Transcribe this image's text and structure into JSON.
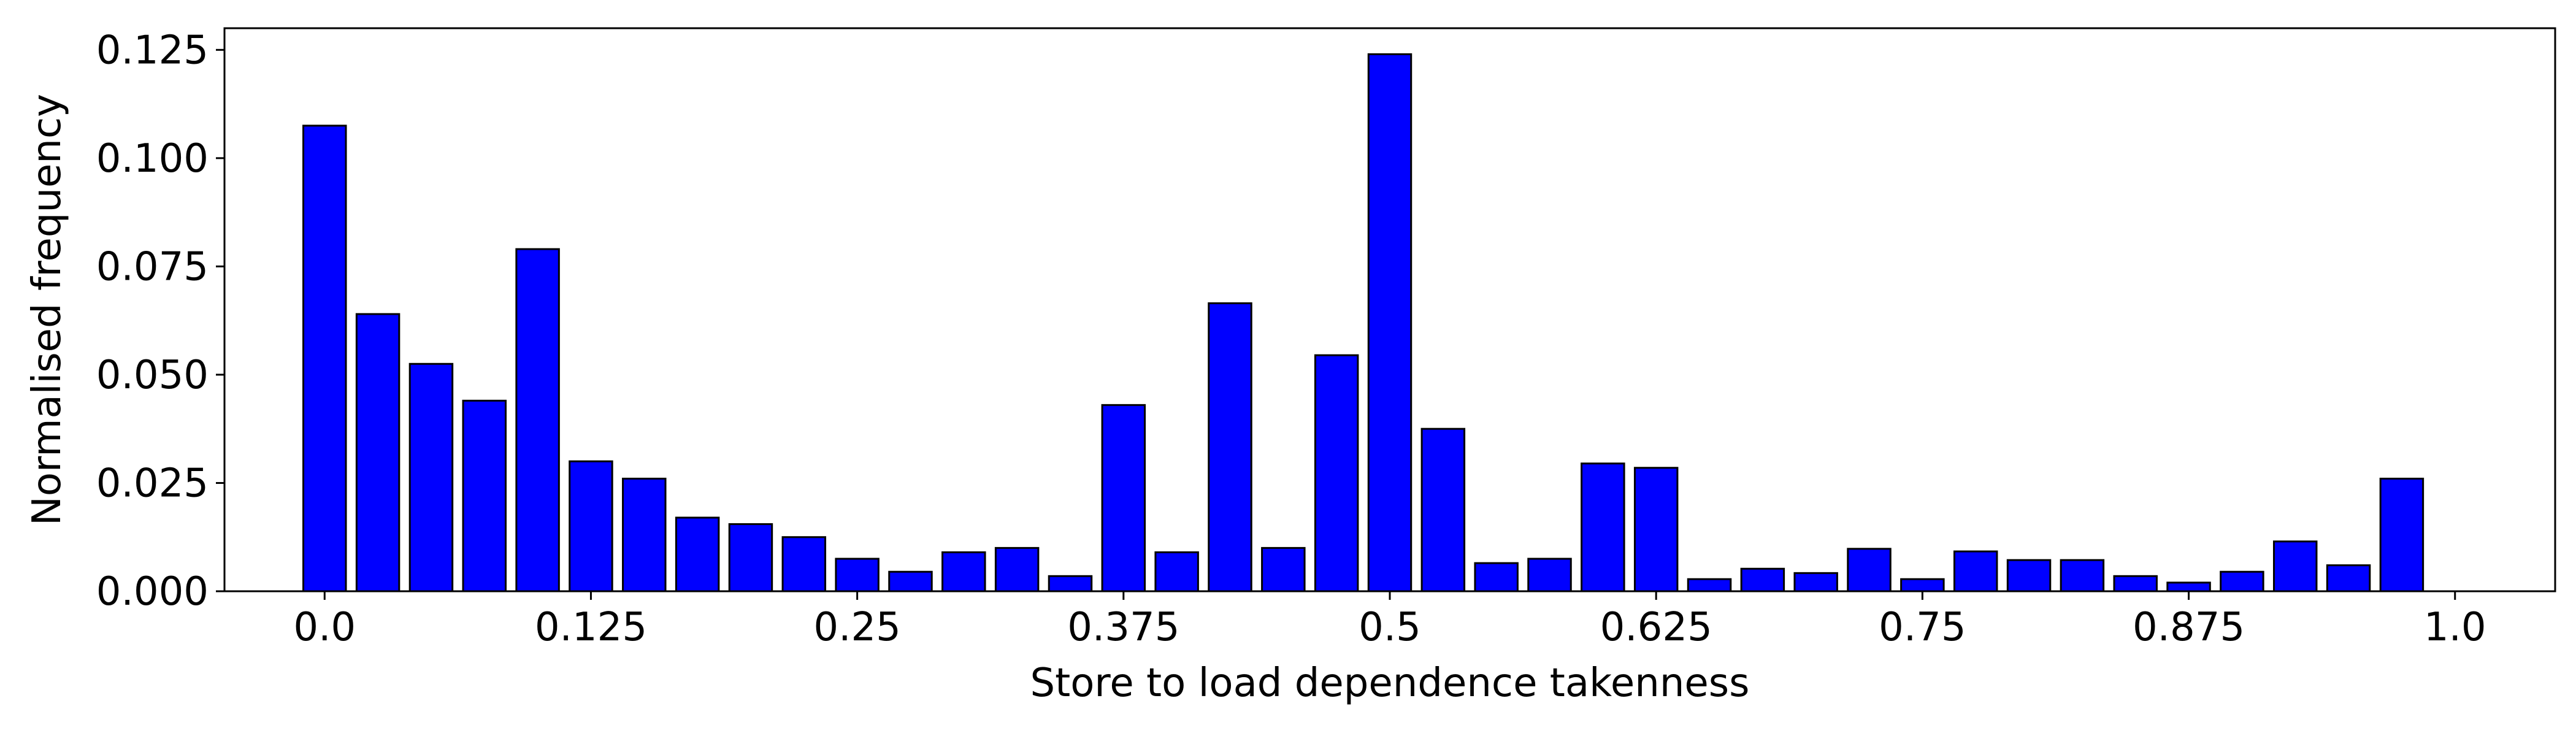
{
  "chart_data": {
    "type": "bar",
    "title": "",
    "xlabel": "Store to load dependence takenness",
    "ylabel": "Normalised frequency",
    "xlim": [
      -0.047,
      1.047
    ],
    "ylim": [
      0,
      0.13
    ],
    "x_ticks": [
      0.0,
      0.125,
      0.25,
      0.375,
      0.5,
      0.625,
      0.75,
      0.875,
      1.0
    ],
    "x_tick_labels": [
      "0.0",
      "0.125",
      "0.25",
      "0.375",
      "0.5",
      "0.625",
      "0.75",
      "0.875",
      "1.0"
    ],
    "y_ticks": [
      0.0,
      0.025,
      0.05,
      0.075,
      0.1,
      0.125
    ],
    "y_tick_labels": [
      "0.000",
      "0.025",
      "0.050",
      "0.075",
      "0.100",
      "0.125"
    ],
    "bar_width": 0.02,
    "x": [
      0.0,
      0.025,
      0.05,
      0.075,
      0.1,
      0.125,
      0.15,
      0.175,
      0.2,
      0.225,
      0.25,
      0.275,
      0.3,
      0.325,
      0.35,
      0.375,
      0.4,
      0.425,
      0.45,
      0.475,
      0.5,
      0.525,
      0.55,
      0.575,
      0.6,
      0.625,
      0.65,
      0.675,
      0.7,
      0.725,
      0.75,
      0.775,
      0.8,
      0.825,
      0.85,
      0.875,
      0.9,
      0.925,
      0.95,
      0.975
    ],
    "values": [
      0.1075,
      0.064,
      0.0525,
      0.044,
      0.079,
      0.03,
      0.026,
      0.017,
      0.0155,
      0.0125,
      0.0075,
      0.0045,
      0.009,
      0.01,
      0.0035,
      0.043,
      0.009,
      0.0665,
      0.01,
      0.0545,
      0.124,
      0.0375,
      0.0065,
      0.0075,
      0.0295,
      0.0285,
      0.0028,
      0.0052,
      0.0042,
      0.0098,
      0.0028,
      0.0092,
      0.0072,
      0.0072,
      0.0035,
      0.002,
      0.0045,
      0.0115,
      0.006,
      0.026
    ],
    "bar_color": "#0000ff",
    "edge_color": "#000000",
    "grid": false,
    "legend": "none"
  }
}
